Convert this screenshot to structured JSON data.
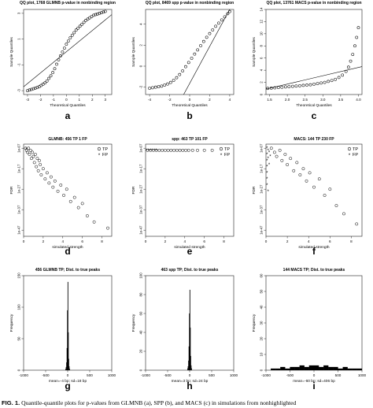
{
  "figure": {
    "caption_label": "FIG. 1.",
    "caption_text": " Quantile-quantile plots for p-values from GLMNB (a), SPP (b), and MACS (c) in simulations from nonhighlighted"
  },
  "colors": {
    "ink": "#000000",
    "axis": "#222222",
    "bars": "#000000"
  },
  "chart_data": [
    {
      "type": "scatter",
      "panel_letter": "a",
      "title": "QQ plot, 1768 GLMNB p-value in nonbinding region",
      "xlabel": "Theoretical Quantiles",
      "ylabel": "Sample Quantiles",
      "xlim": [
        -3.3,
        3.5
      ],
      "ylim": [
        -3.3,
        3.3
      ],
      "xticks": [
        "-3",
        "-2",
        "-1",
        "0",
        "1",
        "2",
        "3"
      ],
      "xtick_values": [
        -3,
        -2,
        -1,
        0,
        1,
        2,
        3
      ],
      "yticks": [
        "-3",
        "-1",
        "1",
        "3"
      ],
      "ytick_values": [
        -3,
        -1,
        1,
        3
      ],
      "reference_line": [
        [
          -3.3,
          -2.7
        ],
        [
          3.5,
          2.9
        ]
      ],
      "points": [
        [
          -3.0,
          -3.0
        ],
        [
          -2.85,
          -2.95
        ],
        [
          -2.7,
          -2.9
        ],
        [
          -2.55,
          -2.85
        ],
        [
          -2.4,
          -2.8
        ],
        [
          -2.25,
          -2.75
        ],
        [
          -2.1,
          -2.7
        ],
        [
          -1.95,
          -2.6
        ],
        [
          -1.8,
          -2.5
        ],
        [
          -1.65,
          -2.4
        ],
        [
          -1.5,
          -2.25
        ],
        [
          -1.35,
          -2.05
        ],
        [
          -1.2,
          -1.85
        ],
        [
          -1.05,
          -1.6
        ],
        [
          -0.9,
          -1.3
        ],
        [
          -0.75,
          -0.95
        ],
        [
          -0.6,
          -0.6
        ],
        [
          -0.45,
          -0.3
        ],
        [
          -0.3,
          0.0
        ],
        [
          -0.15,
          0.3
        ],
        [
          0.0,
          0.6
        ],
        [
          0.15,
          0.85
        ],
        [
          0.3,
          1.1
        ],
        [
          0.45,
          1.3
        ],
        [
          0.6,
          1.5
        ],
        [
          0.75,
          1.7
        ],
        [
          0.9,
          1.85
        ],
        [
          1.05,
          2.0
        ],
        [
          1.2,
          2.15
        ],
        [
          1.35,
          2.3
        ],
        [
          1.5,
          2.45
        ],
        [
          1.65,
          2.55
        ],
        [
          1.8,
          2.65
        ],
        [
          1.95,
          2.75
        ],
        [
          2.1,
          2.85
        ],
        [
          2.25,
          2.9
        ],
        [
          2.4,
          2.95
        ],
        [
          2.55,
          3.0
        ],
        [
          2.7,
          3.05
        ],
        [
          2.85,
          3.1
        ],
        [
          3.0,
          3.15
        ]
      ]
    },
    {
      "type": "scatter",
      "panel_letter": "b",
      "title": "QQ plot, 8469 spp p-value in nonbinding region",
      "xlabel": "Theoretical Quantiles",
      "ylabel": "Sample Quantiles",
      "xlim": [
        -4.4,
        4.4
      ],
      "ylim": [
        -2.7,
        5.4
      ],
      "xticks": [
        "-4",
        "-2",
        "0",
        "2",
        "4"
      ],
      "xtick_values": [
        -4,
        -2,
        0,
        2,
        4
      ],
      "yticks": [
        "-2",
        "0",
        "2",
        "4"
      ],
      "ytick_values": [
        -2,
        0,
        2,
        4
      ],
      "reference_line": [
        [
          -0.6,
          -2.7
        ],
        [
          4.0,
          5.4
        ]
      ],
      "points": [
        [
          -4.0,
          -2.1
        ],
        [
          -3.7,
          -2.05
        ],
        [
          -3.4,
          -2.0
        ],
        [
          -3.1,
          -1.95
        ],
        [
          -2.8,
          -1.9
        ],
        [
          -2.5,
          -1.8
        ],
        [
          -2.2,
          -1.7
        ],
        [
          -1.9,
          -1.55
        ],
        [
          -1.6,
          -1.35
        ],
        [
          -1.3,
          -1.1
        ],
        [
          -1.0,
          -0.8
        ],
        [
          -0.7,
          -0.45
        ],
        [
          -0.4,
          -0.05
        ],
        [
          -0.1,
          0.35
        ],
        [
          0.2,
          0.75
        ],
        [
          0.5,
          1.15
        ],
        [
          0.8,
          1.55
        ],
        [
          1.1,
          1.95
        ],
        [
          1.4,
          2.35
        ],
        [
          1.7,
          2.75
        ],
        [
          2.0,
          3.1
        ],
        [
          2.3,
          3.45
        ],
        [
          2.6,
          3.8
        ],
        [
          2.9,
          4.1
        ],
        [
          3.2,
          4.4
        ],
        [
          3.5,
          4.7
        ],
        [
          3.8,
          5.0
        ],
        [
          4.0,
          5.2
        ]
      ]
    },
    {
      "type": "scatter",
      "panel_letter": "c",
      "title": "QQ plot, 13761 MACS p-value in nonbinding region",
      "xlabel": "Theoretical Quantiles",
      "ylabel": "Sample Quantiles",
      "xlim": [
        1.4,
        4.1
      ],
      "ylim": [
        0,
        14
      ],
      "xticks": [
        "1.5",
        "2.0",
        "2.5",
        "3.0",
        "3.5",
        "4.0"
      ],
      "xtick_values": [
        1.5,
        2.0,
        2.5,
        3.0,
        3.5,
        4.0
      ],
      "yticks": [
        "0",
        "2",
        "4",
        "6",
        "8",
        "10",
        "12",
        "14"
      ],
      "ytick_values": [
        0,
        2,
        4,
        6,
        8,
        10,
        12,
        14
      ],
      "reference_line": [
        [
          1.4,
          0.9
        ],
        [
          4.1,
          4.6
        ]
      ],
      "points": [
        [
          1.45,
          1.0
        ],
        [
          1.55,
          1.05
        ],
        [
          1.65,
          1.1
        ],
        [
          1.75,
          1.15
        ],
        [
          1.85,
          1.2
        ],
        [
          1.95,
          1.25
        ],
        [
          2.05,
          1.3
        ],
        [
          2.15,
          1.35
        ],
        [
          2.25,
          1.4
        ],
        [
          2.35,
          1.45
        ],
        [
          2.45,
          1.5
        ],
        [
          2.55,
          1.55
        ],
        [
          2.65,
          1.6
        ],
        [
          2.75,
          1.7
        ],
        [
          2.85,
          1.8
        ],
        [
          2.95,
          1.9
        ],
        [
          3.05,
          2.0
        ],
        [
          3.15,
          2.15
        ],
        [
          3.25,
          2.3
        ],
        [
          3.35,
          2.5
        ],
        [
          3.45,
          2.8
        ],
        [
          3.55,
          3.2
        ],
        [
          3.65,
          3.8
        ],
        [
          3.72,
          4.5
        ],
        [
          3.78,
          5.5
        ],
        [
          3.84,
          6.6
        ],
        [
          3.9,
          8.0
        ],
        [
          3.95,
          9.4
        ],
        [
          4.0,
          11.0
        ]
      ]
    },
    {
      "type": "scatter",
      "panel_letter": "d",
      "title": "GLMNB: 456 TP 1 FP",
      "xlabel": "simulated strength",
      "ylabel": "FDR",
      "xlim": [
        0,
        9
      ],
      "ylim": [
        -50,
        -5
      ],
      "xticks": [
        "0",
        "2",
        "4",
        "6",
        "8"
      ],
      "xtick_values": [
        0,
        2,
        4,
        6,
        8
      ],
      "yticks": [
        "1e-07",
        "1e-17",
        "1e-27",
        "1e-37",
        "1e-47"
      ],
      "ytick_values": [
        -7,
        -17,
        -27,
        -37,
        -47
      ],
      "legend": [
        "TP",
        "FP"
      ],
      "legend_position": "top-right",
      "tp_points": [
        [
          0.2,
          -7
        ],
        [
          0.3,
          -8
        ],
        [
          0.4,
          -9
        ],
        [
          0.5,
          -7
        ],
        [
          0.6,
          -10
        ],
        [
          0.7,
          -8
        ],
        [
          0.8,
          -12
        ],
        [
          0.9,
          -9
        ],
        [
          1.0,
          -11
        ],
        [
          1.1,
          -14
        ],
        [
          1.2,
          -10
        ],
        [
          1.3,
          -16
        ],
        [
          1.4,
          -12
        ],
        [
          1.5,
          -18
        ],
        [
          1.6,
          -13
        ],
        [
          1.7,
          -15
        ],
        [
          1.8,
          -20
        ],
        [
          2.0,
          -17
        ],
        [
          2.2,
          -22
        ],
        [
          2.4,
          -19
        ],
        [
          2.6,
          -24
        ],
        [
          2.8,
          -21
        ],
        [
          3.0,
          -26
        ],
        [
          3.2,
          -23
        ],
        [
          3.5,
          -28
        ],
        [
          3.8,
          -25
        ],
        [
          4.1,
          -30
        ],
        [
          4.4,
          -27
        ],
        [
          4.8,
          -33
        ],
        [
          5.2,
          -31
        ],
        [
          5.6,
          -36
        ],
        [
          6.0,
          -34
        ],
        [
          6.5,
          -40
        ],
        [
          7.2,
          -43
        ],
        [
          8.6,
          -46
        ]
      ],
      "fp_points": [
        [
          0.3,
          -7.5
        ]
      ]
    },
    {
      "type": "scatter",
      "panel_letter": "e",
      "title": "spp: 463 TP 101 FP",
      "xlabel": "simulated strength",
      "ylabel": "FDR",
      "xlim": [
        0,
        9
      ],
      "ylim": [
        -50,
        -5
      ],
      "xticks": [
        "0",
        "2",
        "4",
        "6",
        "8"
      ],
      "xtick_values": [
        0,
        2,
        4,
        6,
        8
      ],
      "yticks": [
        "1e-07",
        "1e-17",
        "1e-27",
        "1e-37",
        "1e-47"
      ],
      "ytick_values": [
        -7,
        -17,
        -27,
        -37,
        -47
      ],
      "legend": [
        "TP",
        "FP"
      ],
      "legend_position": "top-right",
      "tp_points": [
        [
          0.2,
          -8
        ],
        [
          0.5,
          -8
        ],
        [
          0.8,
          -8
        ],
        [
          1.1,
          -8
        ],
        [
          1.4,
          -8
        ],
        [
          1.7,
          -8
        ],
        [
          2.0,
          -8
        ],
        [
          2.3,
          -8
        ],
        [
          2.6,
          -8
        ],
        [
          2.9,
          -8
        ],
        [
          3.2,
          -8
        ],
        [
          3.5,
          -8
        ],
        [
          3.8,
          -8
        ],
        [
          4.1,
          -8
        ],
        [
          4.4,
          -8
        ],
        [
          4.8,
          -8
        ],
        [
          5.3,
          -8
        ],
        [
          6.0,
          -8
        ],
        [
          6.8,
          -8
        ]
      ],
      "fp_points": [
        [
          0.1,
          -8
        ],
        [
          0.3,
          -8
        ],
        [
          0.5,
          -8
        ],
        [
          0.7,
          -8
        ],
        [
          0.9,
          -8
        ],
        [
          1.1,
          -8
        ]
      ]
    },
    {
      "type": "scatter",
      "panel_letter": "f",
      "title": "MACS: 144 TP 230 FP",
      "xlabel": "simulated strength",
      "ylabel": "FDR",
      "xlim": [
        0,
        9
      ],
      "ylim": [
        -50,
        -5
      ],
      "xticks": [
        "0",
        "2",
        "4",
        "6",
        "8"
      ],
      "xtick_values": [
        0,
        2,
        4,
        6,
        8
      ],
      "yticks": [
        "1e-07",
        "1e-17",
        "1e-27",
        "1e-37",
        "1e-47"
      ],
      "ytick_values": [
        -7,
        -17,
        -27,
        -37,
        -47
      ],
      "legend": [
        "TP",
        "FP"
      ],
      "legend_position": "top-right",
      "tp_points": [
        [
          0.5,
          -7
        ],
        [
          0.8,
          -9
        ],
        [
          1.0,
          -11
        ],
        [
          1.3,
          -8
        ],
        [
          1.5,
          -13
        ],
        [
          1.8,
          -10
        ],
        [
          2.0,
          -15
        ],
        [
          2.3,
          -12
        ],
        [
          2.6,
          -18
        ],
        [
          2.9,
          -14
        ],
        [
          3.2,
          -20
        ],
        [
          3.5,
          -17
        ],
        [
          3.8,
          -23
        ],
        [
          4.1,
          -19
        ],
        [
          4.5,
          -26
        ],
        [
          5.0,
          -22
        ],
        [
          5.5,
          -30
        ],
        [
          6.0,
          -27
        ],
        [
          6.6,
          -35
        ],
        [
          7.3,
          -39
        ],
        [
          8.5,
          -44
        ]
      ],
      "fp_points": [
        [
          0.1,
          -7
        ],
        [
          0.1,
          -10
        ],
        [
          0.1,
          -13
        ],
        [
          0.1,
          -16
        ],
        [
          0.1,
          -19
        ],
        [
          0.1,
          -22
        ],
        [
          0.1,
          -25
        ],
        [
          0.2,
          -28
        ],
        [
          0.2,
          -8
        ],
        [
          0.2,
          -12
        ],
        [
          0.3,
          -9
        ],
        [
          0.3,
          -15
        ],
        [
          0.4,
          -11
        ]
      ]
    },
    {
      "type": "bar",
      "panel_letter": "g",
      "title": "456 GLMNB TP; Dist. to true peaks",
      "xlabel": "mean=-4 bp; sd=18 bp",
      "ylabel": "Frequency",
      "xlim": [
        -1000,
        1000
      ],
      "ylim": [
        0,
        150
      ],
      "xticks": [
        "-1000",
        "-500",
        "0",
        "500",
        "1000"
      ],
      "xtick_values": [
        -1000,
        -500,
        0,
        500,
        1000
      ],
      "yticks": [
        "0",
        "50",
        "100",
        "150"
      ],
      "ytick_values": [
        0,
        50,
        100,
        150
      ],
      "categories": [
        -50,
        -40,
        -30,
        -20,
        -10,
        0,
        10,
        20,
        30,
        40
      ],
      "values": [
        2,
        5,
        12,
        35,
        95,
        140,
        60,
        18,
        6,
        2
      ]
    },
    {
      "type": "bar",
      "panel_letter": "h",
      "title": "463 spp TP; Dist. to true peaks",
      "xlabel": "mean=3 bp; sd=24 bp",
      "ylabel": "Frequency",
      "xlim": [
        -1000,
        1000
      ],
      "ylim": [
        0,
        100
      ],
      "xticks": [
        "-1000",
        "-500",
        "0",
        "500",
        "1000"
      ],
      "xtick_values": [
        -1000,
        -500,
        0,
        500,
        1000
      ],
      "yticks": [
        "0",
        "20",
        "40",
        "60",
        "80",
        "100"
      ],
      "ytick_values": [
        0,
        20,
        40,
        60,
        80,
        100
      ],
      "categories": [
        -50,
        -40,
        -30,
        -20,
        -10,
        0,
        10,
        20,
        30,
        40
      ],
      "values": [
        2,
        4,
        10,
        25,
        60,
        85,
        45,
        15,
        5,
        2
      ]
    },
    {
      "type": "bar",
      "panel_letter": "i",
      "title": "144 MACS TP; Dist. to true peaks",
      "xlabel": "mean=-60 bp; sd=406 bp",
      "ylabel": "Frequency",
      "xlim": [
        -1000,
        1000
      ],
      "ylim": [
        0,
        60
      ],
      "xticks": [
        "-1000",
        "-500",
        "0",
        "500",
        "1000"
      ],
      "xtick_values": [
        -1000,
        -500,
        0,
        500,
        1000
      ],
      "yticks": [
        "0",
        "10",
        "20",
        "30",
        "40",
        "50",
        "60"
      ],
      "ytick_values": [
        0,
        10,
        20,
        30,
        40,
        50,
        60
      ],
      "categories": [
        -900,
        -800,
        -700,
        -600,
        -500,
        -400,
        -300,
        -200,
        -100,
        0,
        100,
        200,
        300,
        400,
        500,
        600,
        700,
        800,
        900
      ],
      "values": [
        1,
        1,
        2,
        1,
        2,
        2,
        3,
        2,
        3,
        3,
        2,
        3,
        2,
        2,
        1,
        2,
        1,
        1,
        1
      ]
    }
  ]
}
